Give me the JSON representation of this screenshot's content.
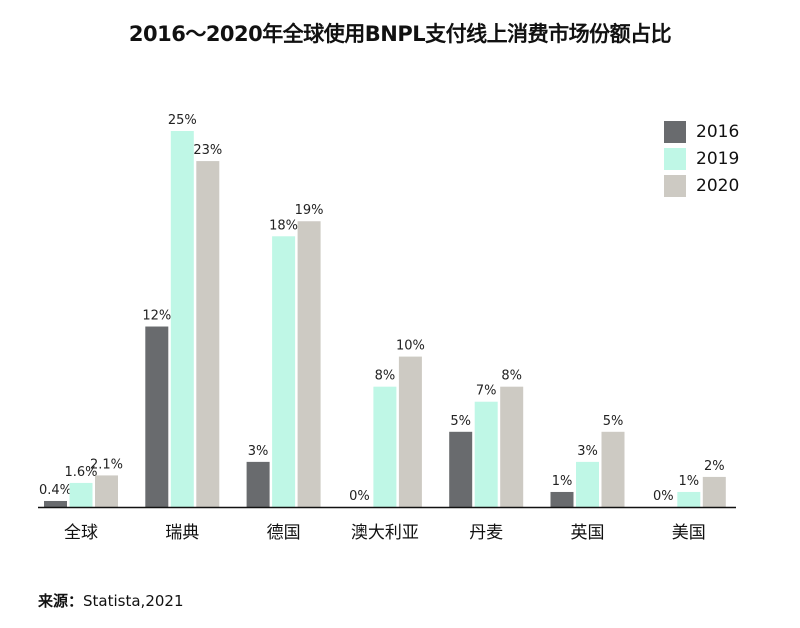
{
  "chart_data": {
    "type": "bar",
    "title": "2016～2020年全球使用BNPL支付线上消费市场份额占比",
    "categories": [
      "全球",
      "瑞典",
      "德国",
      "澳大利亚",
      "丹麦",
      "英国",
      "美国"
    ],
    "series": [
      {
        "name": "2016",
        "color": "#696b6e",
        "values": [
          0.4,
          12,
          3,
          0,
          5,
          1,
          0
        ],
        "labels": [
          "0.4%",
          "12%",
          "3%",
          "0%",
          "5%",
          "1%",
          "0%"
        ]
      },
      {
        "name": "2019",
        "color": "#bff7e6",
        "values": [
          1.6,
          25,
          18,
          8,
          7,
          3,
          1
        ],
        "labels": [
          "1.6%",
          "25%",
          "18%",
          "8%",
          "7%",
          "3%",
          "1%"
        ]
      },
      {
        "name": "2020",
        "color": "#cdcac3",
        "values": [
          2.1,
          23,
          19,
          10,
          8,
          5,
          2
        ],
        "labels": [
          "2.1%",
          "23%",
          "19%",
          "10%",
          "8%",
          "5%",
          "2%"
        ]
      }
    ],
    "ylim": [
      0,
      25
    ],
    "legend_position": "top-right",
    "grid": false
  },
  "source": {
    "label": "来源：",
    "text": "Statista,2021"
  }
}
